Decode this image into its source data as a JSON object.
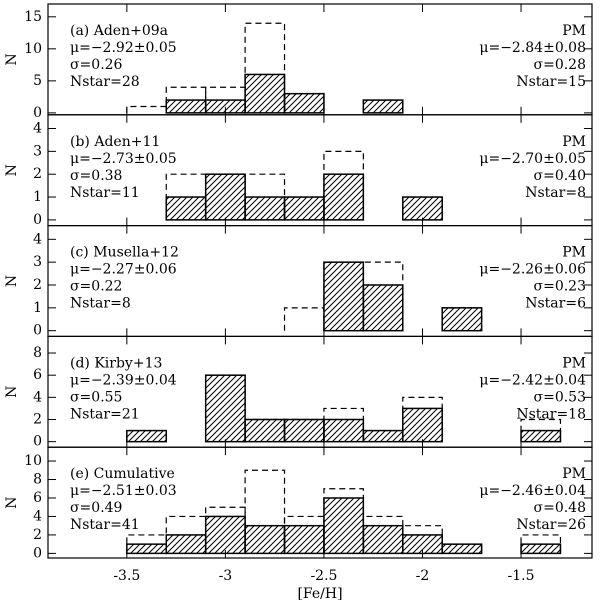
{
  "chart_data": [
    {
      "type": "histogram",
      "bins": [
        -3.5,
        -3.3,
        -3.1,
        -2.9,
        -2.7,
        -2.5,
        -2.3,
        -2.1,
        -1.9,
        -1.7,
        -1.5,
        -1.3
      ],
      "series": [
        {
          "style": "hatched",
          "color": "#000000",
          "values": [
            0,
            2,
            2,
            6,
            3,
            0,
            2,
            0,
            0,
            0,
            0
          ]
        },
        {
          "style": "dashed",
          "color": "#000000",
          "values": [
            1,
            4,
            4,
            14,
            3,
            0,
            2,
            0,
            0,
            0,
            0
          ]
        }
      ],
      "xlim": [
        -3.9,
        -1.14
      ],
      "ylim": [
        -0.3,
        17
      ],
      "xticks": [
        -3.5,
        -3.0,
        -2.5,
        -2.0,
        -1.5
      ],
      "yticks": [
        0,
        5,
        10,
        15
      ],
      "ylabel": "N",
      "text_left": [
        "(a) Aden+09a",
        "μ=−2.92±0.05",
        "σ=0.26",
        "Nstar=28"
      ],
      "text_right": [
        "PM",
        "μ=−2.84±0.08",
        "σ=0.28",
        "Nstar=15"
      ]
    },
    {
      "type": "histogram",
      "bins": [
        -3.5,
        -3.3,
        -3.1,
        -2.9,
        -2.7,
        -2.5,
        -2.3,
        -2.1,
        -1.9,
        -1.7,
        -1.5,
        -1.3
      ],
      "series": [
        {
          "style": "hatched",
          "color": "#000000",
          "values": [
            0,
            1,
            2,
            1,
            1,
            2,
            0,
            1,
            0,
            0,
            0
          ]
        },
        {
          "style": "dashed",
          "color": "#000000",
          "values": [
            0,
            2,
            2,
            2,
            1,
            3,
            0,
            1,
            0,
            0,
            0
          ]
        }
      ],
      "xlim": [
        -3.9,
        -1.14
      ],
      "ylim": [
        -0.25,
        4.6
      ],
      "xticks": [
        -3.5,
        -3.0,
        -2.5,
        -2.0,
        -1.5
      ],
      "yticks": [
        0,
        1,
        2,
        3,
        4
      ],
      "ylabel": "N",
      "text_left": [
        "(b) Aden+11",
        "μ=−2.73±0.05",
        "σ=0.38",
        "Nstar=11"
      ],
      "text_right": [
        "PM",
        "μ=−2.70±0.05",
        "σ=0.40",
        "Nstar=8"
      ]
    },
    {
      "type": "histogram",
      "bins": [
        -3.5,
        -3.3,
        -3.1,
        -2.9,
        -2.7,
        -2.5,
        -2.3,
        -2.1,
        -1.9,
        -1.7,
        -1.5,
        -1.3
      ],
      "series": [
        {
          "style": "hatched",
          "color": "#000000",
          "values": [
            0,
            0,
            0,
            0,
            0,
            3,
            2,
            0,
            1,
            0,
            0
          ]
        },
        {
          "style": "dashed",
          "color": "#000000",
          "values": [
            0,
            0,
            0,
            0,
            1,
            3,
            3,
            0,
            1,
            0,
            0
          ]
        }
      ],
      "xlim": [
        -3.9,
        -1.14
      ],
      "ylim": [
        -0.25,
        4.6
      ],
      "xticks": [
        -3.5,
        -3.0,
        -2.5,
        -2.0,
        -1.5
      ],
      "yticks": [
        0,
        1,
        2,
        3,
        4
      ],
      "ylabel": "N",
      "text_left": [
        "(c) Musella+12",
        "μ=−2.27±0.06",
        "σ=0.22",
        "Nstar=8"
      ],
      "text_right": [
        "PM",
        "μ=−2.26±0.06",
        "σ=0.23",
        "Nstar=6"
      ]
    },
    {
      "type": "histogram",
      "bins": [
        -3.5,
        -3.3,
        -3.1,
        -2.9,
        -2.7,
        -2.5,
        -2.3,
        -2.1,
        -1.9,
        -1.7,
        -1.5,
        -1.3
      ],
      "series": [
        {
          "style": "hatched",
          "color": "#000000",
          "values": [
            1,
            0,
            6,
            2,
            2,
            2,
            1,
            3,
            0,
            0,
            1
          ]
        },
        {
          "style": "dashed",
          "color": "#000000",
          "values": [
            1,
            0,
            6,
            2,
            2,
            3,
            1,
            4,
            0,
            0,
            2
          ]
        }
      ],
      "xlim": [
        -3.9,
        -1.14
      ],
      "ylim": [
        -0.5,
        9.5
      ],
      "xticks": [
        -3.5,
        -3.0,
        -2.5,
        -2.0,
        -1.5
      ],
      "yticks": [
        0,
        2,
        4,
        6,
        8
      ],
      "ylabel": "N",
      "text_left": [
        "(d) Kirby+13",
        "μ=−2.39±0.04",
        "σ=0.55",
        "Nstar=21"
      ],
      "text_right": [
        "PM",
        "μ=−2.42±0.04",
        "σ=0.53",
        "Nstar=18"
      ]
    },
    {
      "type": "histogram",
      "bins": [
        -3.5,
        -3.3,
        -3.1,
        -2.9,
        -2.7,
        -2.5,
        -2.3,
        -2.1,
        -1.9,
        -1.7,
        -1.5,
        -1.3
      ],
      "series": [
        {
          "style": "hatched",
          "color": "#000000",
          "values": [
            1,
            2,
            4,
            3,
            3,
            6,
            3,
            2,
            1,
            0,
            1
          ]
        },
        {
          "style": "dashed",
          "color": "#000000",
          "values": [
            2,
            4,
            5,
            9,
            4,
            7,
            4,
            3,
            1,
            0,
            2
          ]
        }
      ],
      "xlim": [
        -3.9,
        -1.14
      ],
      "ylim": [
        -0.5,
        11.5
      ],
      "xticks": [
        -3.5,
        -3.0,
        -2.5,
        -2.0,
        -1.5
      ],
      "yticks": [
        0,
        2,
        4,
        6,
        8,
        10
      ],
      "ylabel": "N",
      "xlabel": "[Fe/H]",
      "text_left": [
        "(e) Cumulative",
        "μ=−2.51±0.03",
        "σ=0.49",
        "Nstar=41"
      ],
      "text_right": [
        "PM",
        "μ=−2.46±0.04",
        "σ=0.48",
        "Nstar=26"
      ]
    }
  ]
}
